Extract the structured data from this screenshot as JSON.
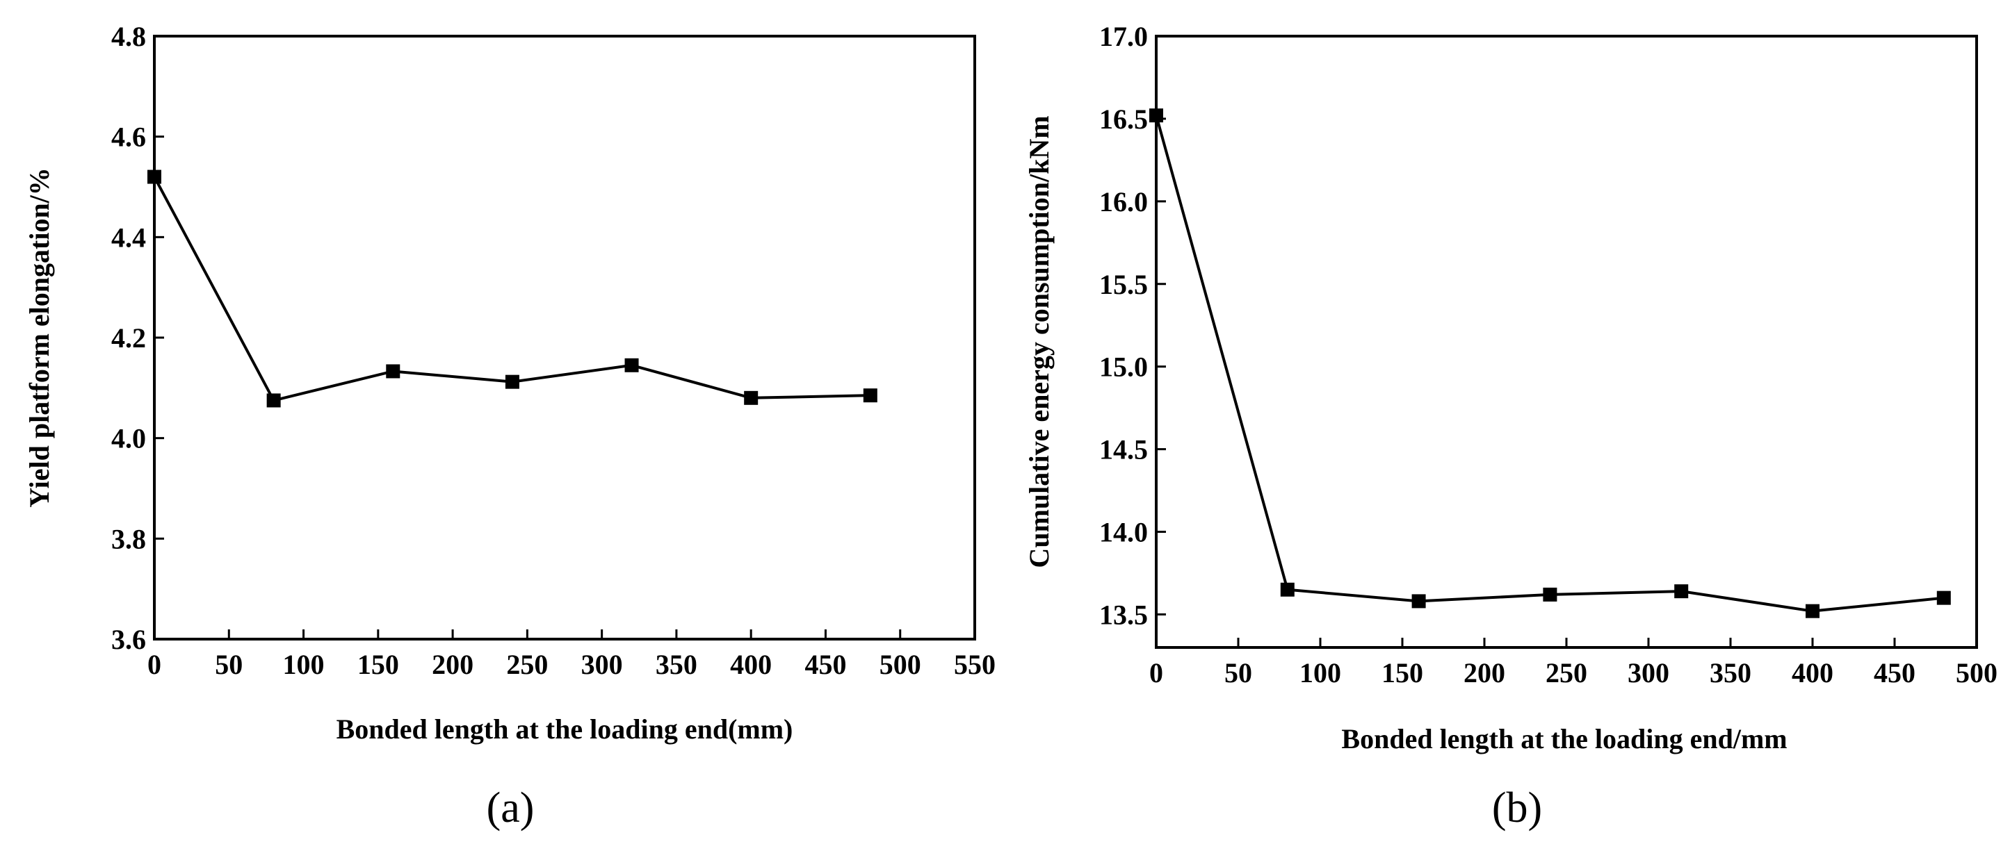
{
  "chart_data": [
    {
      "type": "line",
      "panel_label": "(a)",
      "xlabel": "Bonded length at the loading end(mm)",
      "ylabel": "Yield platform elongation/%",
      "xlim": [
        0,
        550
      ],
      "ylim": [
        3.6,
        4.8
      ],
      "x_ticks": [
        "0",
        "50",
        "100",
        "150",
        "200",
        "250",
        "300",
        "350",
        "400",
        "450",
        "500",
        "550"
      ],
      "y_ticks": [
        "3.6",
        "3.8",
        "4.0",
        "4.2",
        "4.4",
        "4.6",
        "4.8"
      ],
      "series": [
        {
          "name": "Yield platform elongation",
          "x": [
            0,
            80,
            160,
            240,
            320,
            400,
            480
          ],
          "y": [
            4.52,
            4.075,
            4.133,
            4.112,
            4.145,
            4.08,
            4.085
          ]
        }
      ]
    },
    {
      "type": "line",
      "panel_label": "(b)",
      "xlabel": "Bonded length at the loading end/mm",
      "ylabel": "Cumulative energy consumption/kNm",
      "xlim": [
        0,
        500
      ],
      "ylim": [
        13.3,
        17.0
      ],
      "x_ticks": [
        "0",
        "50",
        "100",
        "150",
        "200",
        "250",
        "300",
        "350",
        "400",
        "450",
        "500"
      ],
      "y_ticks": [
        "13.5",
        "14.0",
        "14.5",
        "15.0",
        "15.5",
        "16.0",
        "16.5",
        "17.0"
      ],
      "series": [
        {
          "name": "Cumulative energy consumption",
          "x": [
            0,
            80,
            160,
            240,
            320,
            400,
            480
          ],
          "y": [
            16.52,
            13.65,
            13.58,
            13.62,
            13.64,
            13.52,
            13.6
          ]
        }
      ]
    }
  ]
}
